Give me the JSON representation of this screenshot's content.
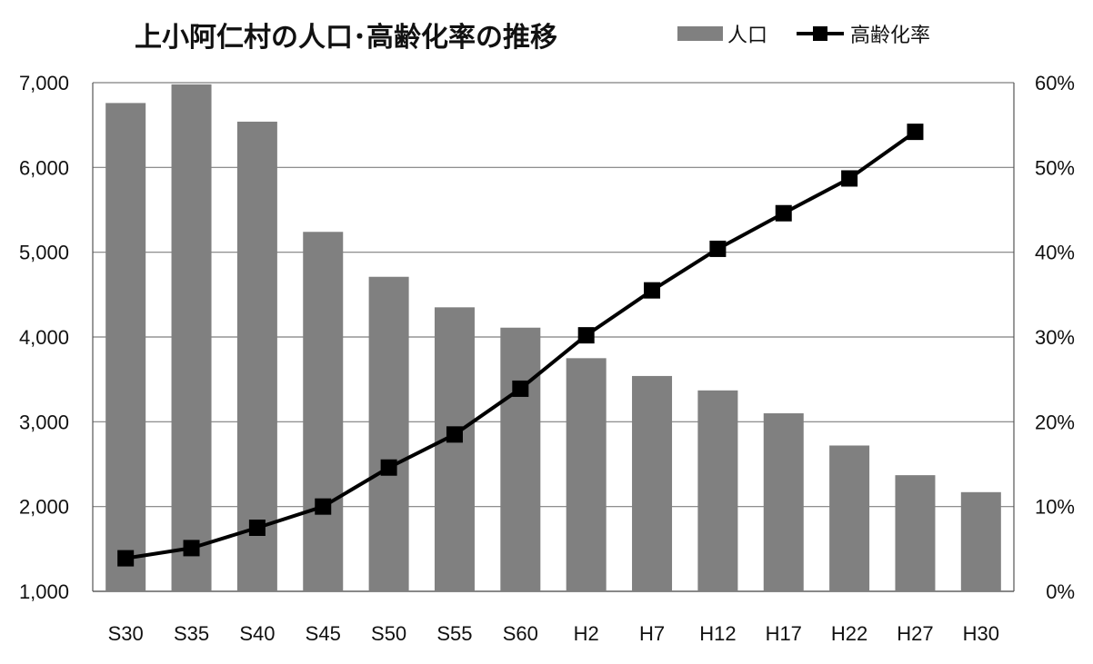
{
  "chart_data": {
    "type": "bar",
    "title": "上小阿仁村の人口･高齢化率の推移",
    "categories": [
      "S30",
      "S35",
      "S40",
      "S45",
      "S50",
      "S55",
      "S60",
      "H2",
      "H7",
      "H12",
      "H17",
      "H22",
      "H27",
      "H30"
    ],
    "series": [
      {
        "name": "人口",
        "type": "bar",
        "axis": "left",
        "color": "#808080",
        "values": [
          6760,
          6980,
          6540,
          5240,
          4710,
          4350,
          4110,
          3750,
          3540,
          3370,
          3100,
          2720,
          2370,
          2170
        ]
      },
      {
        "name": "高齢化率",
        "type": "line",
        "axis": "right",
        "color": "#000000",
        "marker": "square",
        "values": [
          3.9,
          5.1,
          7.5,
          10.0,
          14.6,
          18.5,
          23.9,
          30.2,
          35.5,
          40.4,
          44.6,
          48.7,
          54.2,
          null
        ]
      }
    ],
    "y_left": {
      "min": 1000,
      "max": 7000,
      "ticks": [
        1000,
        2000,
        3000,
        4000,
        5000,
        6000,
        7000
      ],
      "tick_labels": [
        "1,000",
        "2,000",
        "3,000",
        "4,000",
        "5,000",
        "6,000",
        "7,000"
      ]
    },
    "y_right": {
      "min": 0,
      "max": 60,
      "ticks": [
        0,
        10,
        20,
        30,
        40,
        50,
        60
      ],
      "tick_labels": [
        "0%",
        "10%",
        "20%",
        "30%",
        "40%",
        "50%",
        "60%"
      ]
    },
    "xlabel": "",
    "ylabel": "",
    "grid": true,
    "legend_position": "top-right"
  }
}
